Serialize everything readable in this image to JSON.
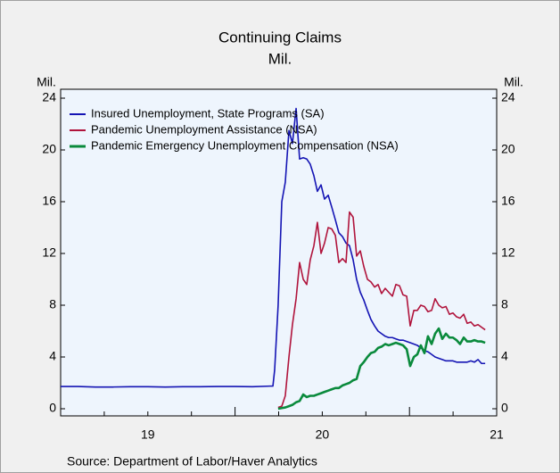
{
  "chart_data": {
    "type": "line",
    "title": "Continuing Claims",
    "subtitle": "Mil.",
    "y_label": "Mil.",
    "y2_label": "Mil.",
    "source": "Source: Department of Labor/Haver Analytics",
    "xlim": [
      2019,
      2021.5
    ],
    "xticks": [
      {
        "value": 2019.5,
        "label": "19"
      },
      {
        "value": 2020.5,
        "label": "20"
      },
      {
        "value": 2021.5,
        "label": "21"
      }
    ],
    "ylim": [
      0,
      24
    ],
    "yticks": [
      0,
      4,
      8,
      12,
      16,
      20,
      24
    ],
    "y2lim": [
      0,
      24
    ],
    "y2ticks": [
      0,
      4,
      8,
      12,
      16,
      20,
      24
    ],
    "legend": "upper left",
    "series": [
      {
        "name": "Insured Unemployment, State Programs (SA)",
        "color": "#1414b4",
        "x": [
          2019.0,
          2019.1,
          2019.2,
          2019.3,
          2019.4,
          2019.5,
          2019.6,
          2019.7,
          2019.8,
          2019.9,
          2020.0,
          2020.1,
          2020.2,
          2020.217,
          2020.227,
          2020.247,
          2020.268,
          2020.288,
          2020.309,
          2020.329,
          2020.35,
          2020.37,
          2020.391,
          2020.411,
          2020.431,
          2020.452,
          2020.472,
          2020.493,
          2020.513,
          2020.534,
          2020.554,
          2020.575,
          2020.595,
          2020.616,
          2020.636,
          2020.656,
          2020.677,
          2020.697,
          2020.718,
          2020.738,
          2020.759,
          2020.779,
          2020.8,
          2020.82,
          2020.84,
          2020.861,
          2020.881,
          2020.902,
          2020.922,
          2020.943,
          2020.963,
          2020.984,
          2021.004,
          2021.025,
          2021.045,
          2021.065,
          2021.086,
          2021.106,
          2021.127,
          2021.147,
          2021.168,
          2021.188,
          2021.209,
          2021.229,
          2021.249,
          2021.27,
          2021.29,
          2021.311,
          2021.331,
          2021.352,
          2021.372,
          2021.393,
          2021.413,
          2021.434
        ],
        "values": [
          1.72,
          1.72,
          1.68,
          1.68,
          1.7,
          1.7,
          1.68,
          1.7,
          1.7,
          1.72,
          1.72,
          1.7,
          1.75,
          1.75,
          3.0,
          8.0,
          16.0,
          17.5,
          21.5,
          20.5,
          23.2,
          19.3,
          19.4,
          19.3,
          18.9,
          18.0,
          16.8,
          17.3,
          16.2,
          16.5,
          15.6,
          14.6,
          13.6,
          13.3,
          12.8,
          12.6,
          11.5,
          10.0,
          9.0,
          8.4,
          7.6,
          6.9,
          6.4,
          6.0,
          5.8,
          5.6,
          5.5,
          5.5,
          5.4,
          5.3,
          5.3,
          5.2,
          5.1,
          5.0,
          4.9,
          4.7,
          4.5,
          4.4,
          4.2,
          4.0,
          3.9,
          3.8,
          3.7,
          3.7,
          3.7,
          3.6,
          3.6,
          3.6,
          3.6,
          3.7,
          3.6,
          3.8,
          3.5,
          3.5
        ]
      },
      {
        "name": "Pandemic Unemployment Assistance (NSA)",
        "color": "#b0143c",
        "x": [
          2020.247,
          2020.268,
          2020.288,
          2020.309,
          2020.329,
          2020.35,
          2020.37,
          2020.391,
          2020.411,
          2020.431,
          2020.452,
          2020.472,
          2020.493,
          2020.513,
          2020.534,
          2020.554,
          2020.575,
          2020.595,
          2020.616,
          2020.636,
          2020.656,
          2020.677,
          2020.697,
          2020.718,
          2020.738,
          2020.759,
          2020.779,
          2020.8,
          2020.82,
          2020.84,
          2020.861,
          2020.881,
          2020.902,
          2020.922,
          2020.943,
          2020.963,
          2020.984,
          2021.004,
          2021.025,
          2021.045,
          2021.065,
          2021.086,
          2021.106,
          2021.127,
          2021.147,
          2021.168,
          2021.188,
          2021.209,
          2021.229,
          2021.249,
          2021.27,
          2021.29,
          2021.311,
          2021.331,
          2021.352,
          2021.372,
          2021.393,
          2021.413,
          2021.434
        ],
        "values": [
          0.1,
          0.2,
          1.0,
          4.0,
          6.5,
          8.5,
          11.3,
          10.0,
          9.6,
          11.5,
          12.6,
          14.4,
          12.0,
          12.8,
          14.0,
          13.9,
          13.4,
          11.3,
          11.6,
          11.3,
          15.2,
          14.8,
          11.8,
          12.2,
          11.0,
          10.0,
          9.8,
          9.4,
          9.6,
          8.9,
          9.3,
          9.0,
          8.7,
          9.6,
          9.5,
          8.8,
          8.7,
          6.4,
          7.6,
          7.6,
          8.0,
          7.9,
          7.5,
          7.6,
          8.5,
          8.0,
          7.8,
          7.9,
          7.3,
          7.4,
          7.1,
          7.0,
          7.3,
          6.6,
          6.7,
          6.4,
          6.5,
          6.3,
          6.1
        ]
      },
      {
        "name": "Pandemic Emergency Unemployment Compensation (NSA)",
        "color": "#0a8a3c",
        "x": [
          2020.247,
          2020.268,
          2020.288,
          2020.309,
          2020.329,
          2020.35,
          2020.37,
          2020.391,
          2020.411,
          2020.431,
          2020.452,
          2020.472,
          2020.493,
          2020.513,
          2020.534,
          2020.554,
          2020.575,
          2020.595,
          2020.616,
          2020.636,
          2020.656,
          2020.677,
          2020.697,
          2020.718,
          2020.738,
          2020.759,
          2020.779,
          2020.8,
          2020.82,
          2020.84,
          2020.861,
          2020.881,
          2020.902,
          2020.922,
          2020.943,
          2020.963,
          2020.984,
          2021.004,
          2021.025,
          2021.045,
          2021.065,
          2021.086,
          2021.106,
          2021.127,
          2021.147,
          2021.168,
          2021.188,
          2021.209,
          2021.229,
          2021.249,
          2021.27,
          2021.29,
          2021.311,
          2021.331,
          2021.352,
          2021.372,
          2021.393,
          2021.413,
          2021.434
        ],
        "values": [
          0.0,
          0.05,
          0.1,
          0.2,
          0.3,
          0.5,
          0.6,
          1.1,
          0.9,
          1.0,
          1.0,
          1.1,
          1.2,
          1.3,
          1.4,
          1.5,
          1.6,
          1.6,
          1.8,
          1.9,
          2.0,
          2.2,
          2.3,
          3.3,
          3.6,
          4.0,
          4.3,
          4.4,
          4.7,
          4.8,
          5.0,
          4.9,
          5.0,
          5.1,
          5.0,
          4.9,
          4.6,
          3.3,
          4.0,
          4.2,
          4.9,
          4.3,
          5.6,
          5.0,
          5.8,
          6.2,
          5.4,
          5.8,
          5.5,
          5.5,
          5.3,
          5.0,
          5.5,
          5.2,
          5.2,
          5.3,
          5.2,
          5.2,
          5.1
        ]
      }
    ]
  }
}
